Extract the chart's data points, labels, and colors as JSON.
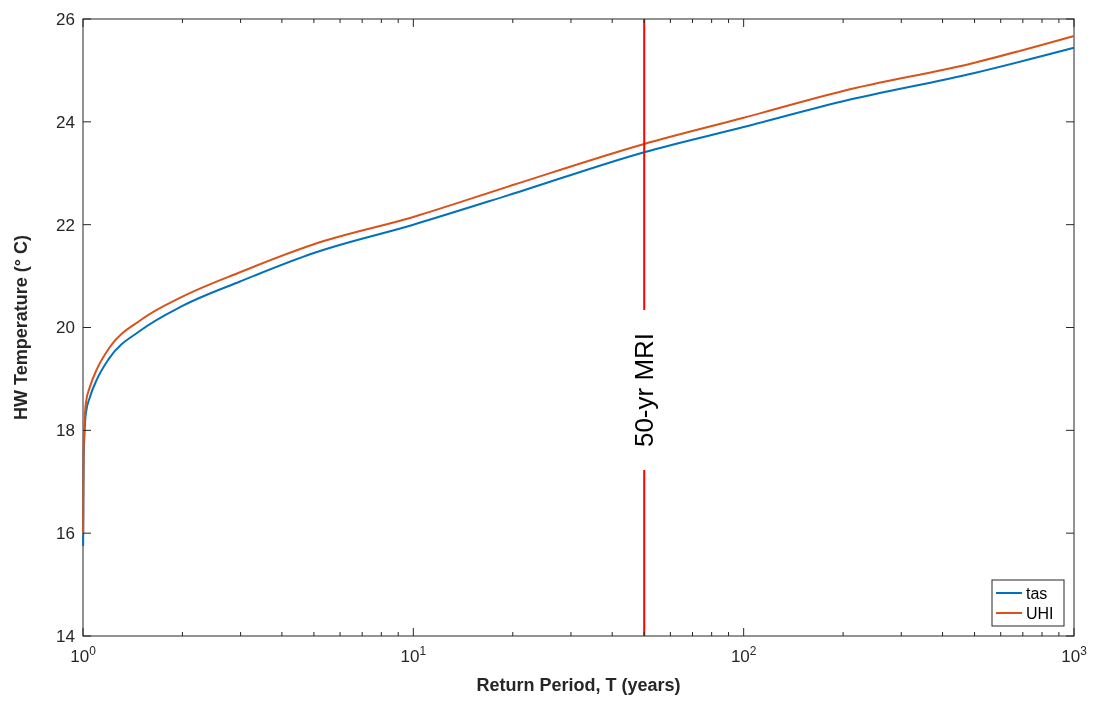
{
  "chart_data": {
    "type": "line",
    "xlabel": "Return Period, T (years)",
    "ylabel": "HW Temperature (° C)",
    "log": "x",
    "xlim": [
      1,
      1000
    ],
    "ylim": [
      14,
      26
    ],
    "xticks": [
      {
        "value": 1,
        "label": "10$^{0}$"
      },
      {
        "value": 10,
        "label": "10$^{1}$"
      },
      {
        "value": 100,
        "label": "10$^{2}$"
      },
      {
        "value": 1000,
        "label": "10$^{3}$"
      }
    ],
    "yticks": [
      14,
      16,
      18,
      20,
      22,
      24,
      26
    ],
    "grid": false,
    "legend": "bottom right",
    "line_style": "solid",
    "ref_lines": [
      {
        "axis": "x",
        "value": 50,
        "label": "50-yr MRI",
        "color": "#ff0000"
      }
    ],
    "series": [
      {
        "name": "tas",
        "color": "#0072bd",
        "x": [
          1.001,
          1.003,
          1.005,
          1.01,
          1.02,
          1.05,
          1.1,
          1.2,
          1.5,
          2,
          3,
          5,
          10,
          20,
          50,
          100,
          200,
          500,
          1000
        ],
        "values": [
          15.75,
          16.9,
          17.5,
          17.9,
          18.33,
          18.65,
          18.98,
          19.4,
          19.95,
          20.42,
          20.9,
          21.45,
          22.0,
          22.6,
          23.41,
          23.9,
          24.4,
          24.95,
          25.44
        ]
      },
      {
        "name": "UHI",
        "color": "#d95319",
        "x": [
          1.001,
          1.003,
          1.005,
          1.01,
          1.02,
          1.05,
          1.1,
          1.2,
          1.5,
          2,
          3,
          5,
          10,
          20,
          50,
          100,
          200,
          500,
          1000
        ],
        "values": [
          16.0,
          17.1,
          17.7,
          18.1,
          18.53,
          18.85,
          19.18,
          19.6,
          20.15,
          20.6,
          21.08,
          21.62,
          22.15,
          22.77,
          23.57,
          24.08,
          24.6,
          25.15,
          25.67
        ]
      }
    ]
  }
}
